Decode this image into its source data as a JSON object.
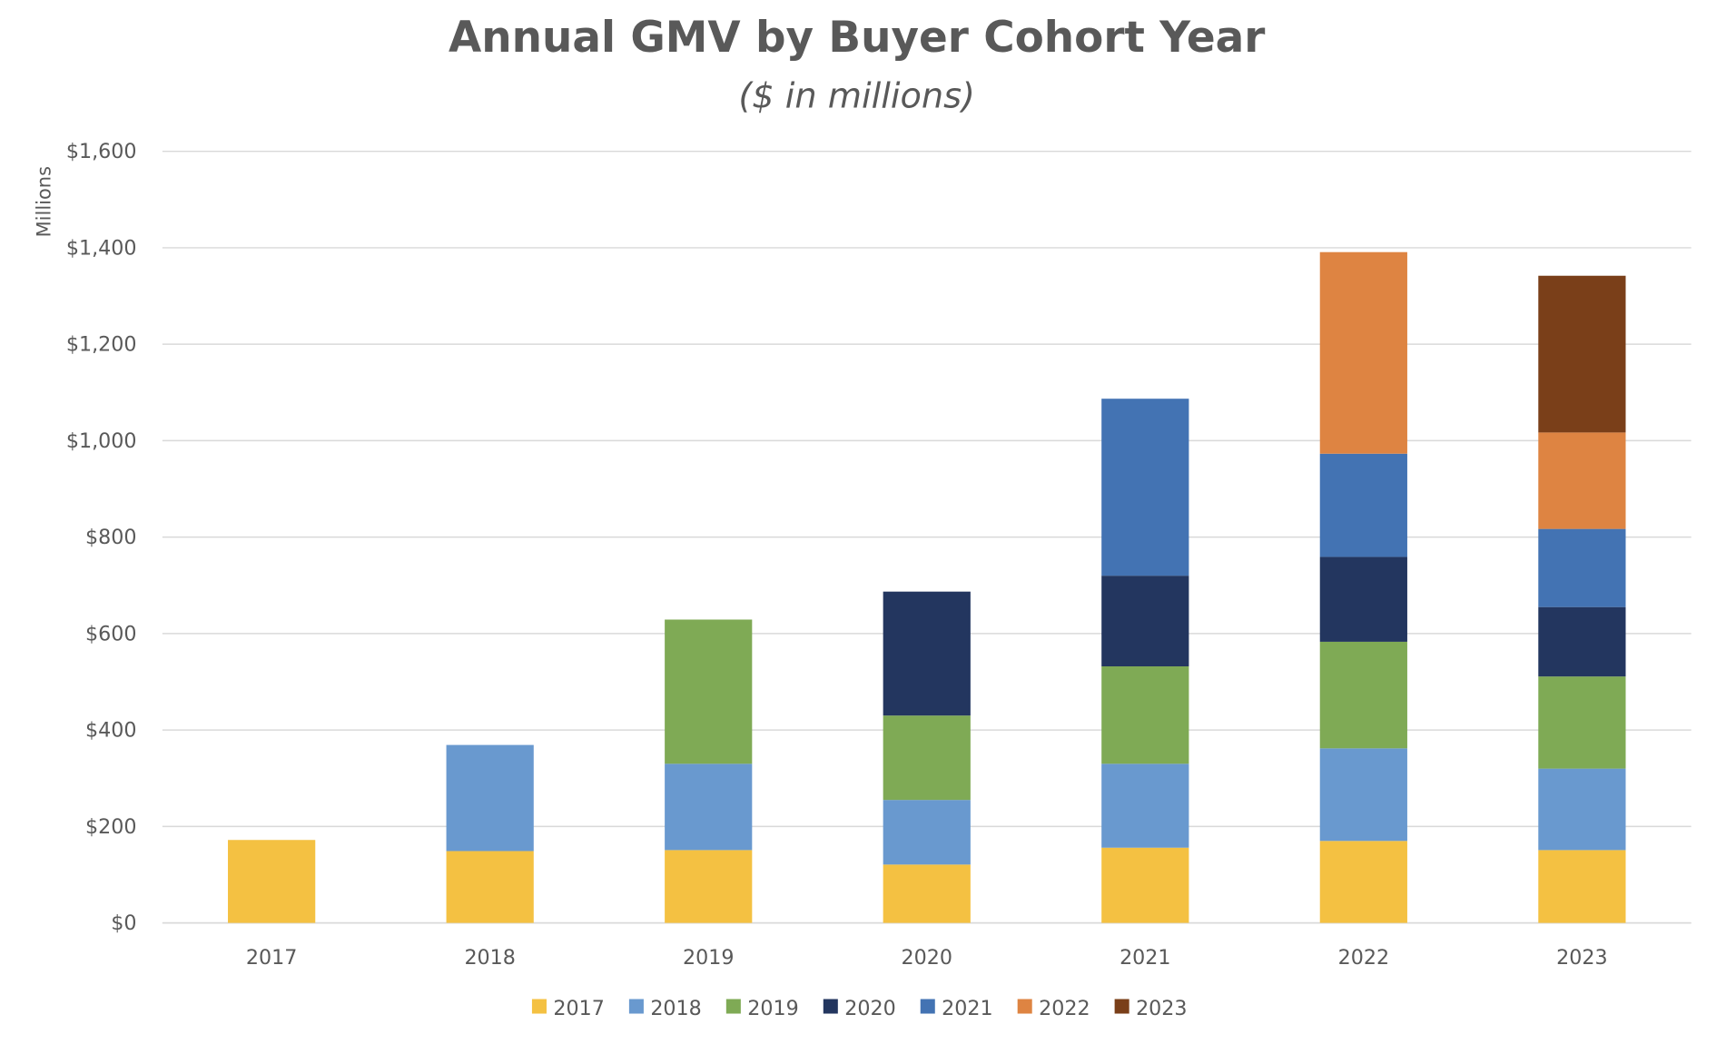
{
  "chart_data": {
    "type": "bar",
    "stacked": true,
    "title": "Annual GMV by Buyer Cohort Year",
    "subtitle": "($ in millions)",
    "xlabel": "",
    "ylabel": "Millions",
    "ylim": [
      0,
      1600
    ],
    "yticks": [
      0,
      200,
      400,
      600,
      800,
      1000,
      1200,
      1400,
      1600
    ],
    "ytick_labels": [
      "$0",
      "$200",
      "$400",
      "$600",
      "$800",
      "$1,000",
      "$1,200",
      "$1,400",
      "$1,600"
    ],
    "grid": true,
    "legend_position": "bottom",
    "categories": [
      "2017",
      "2018",
      "2019",
      "2020",
      "2021",
      "2022",
      "2023"
    ],
    "series": [
      {
        "name": "2017",
        "color": "#F4C142",
        "values": [
          172,
          149,
          151,
          121,
          156,
          170,
          151
        ]
      },
      {
        "name": "2018",
        "color": "#6999CF",
        "values": [
          0,
          220,
          179,
          134,
          174,
          192,
          169
        ]
      },
      {
        "name": "2019",
        "color": "#7FAA55",
        "values": [
          0,
          0,
          299,
          175,
          202,
          221,
          191
        ]
      },
      {
        "name": "2020",
        "color": "#23365F",
        "values": [
          0,
          0,
          0,
          257,
          188,
          176,
          144
        ]
      },
      {
        "name": "2021",
        "color": "#4373B3",
        "values": [
          0,
          0,
          0,
          0,
          367,
          214,
          162
        ]
      },
      {
        "name": "2022",
        "color": "#DE8442",
        "values": [
          0,
          0,
          0,
          0,
          0,
          418,
          200
        ]
      },
      {
        "name": "2023",
        "color": "#7A3F19",
        "values": [
          0,
          0,
          0,
          0,
          0,
          0,
          325
        ]
      }
    ]
  }
}
